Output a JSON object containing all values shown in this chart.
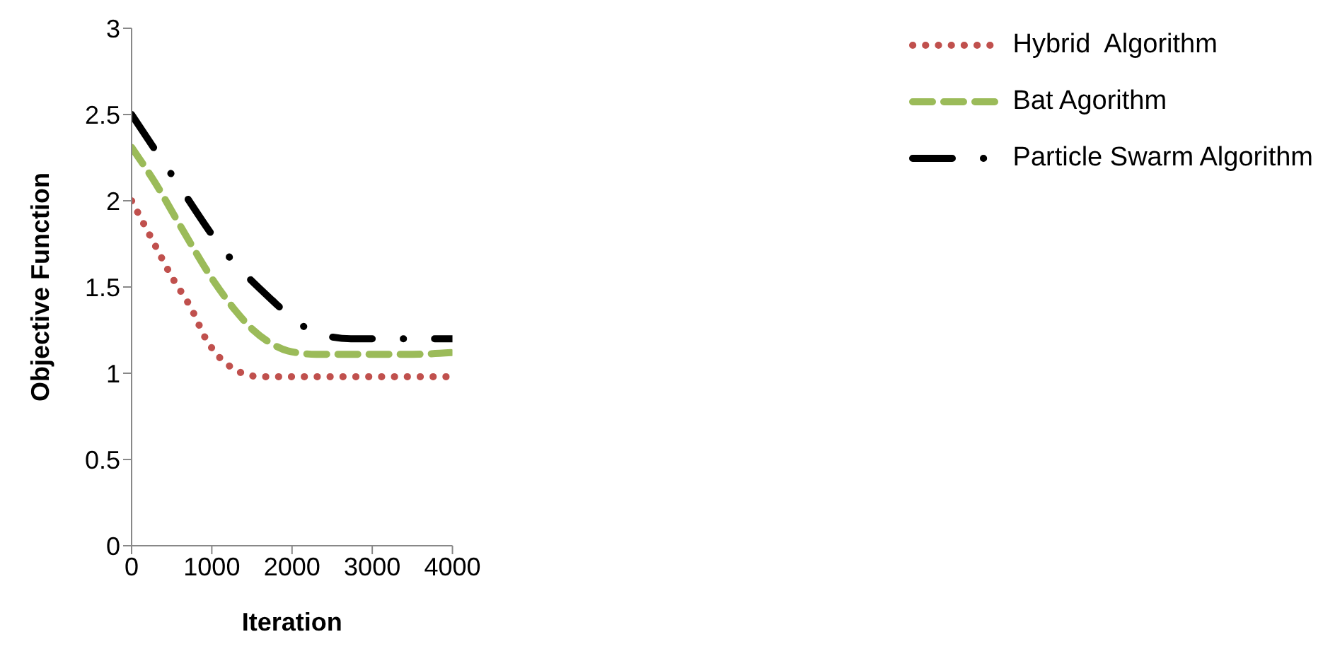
{
  "chart_data": {
    "type": "line",
    "xlabel": "Iteration",
    "ylabel": "Objective Function",
    "xlim": [
      0,
      4000
    ],
    "xticks": [
      0,
      1000,
      2000,
      3000,
      4000
    ],
    "ylim": [
      0,
      3
    ],
    "yticks": [
      0,
      0.5,
      1,
      1.5,
      2,
      2.5,
      3
    ],
    "grid": false,
    "legend": "top right",
    "marker": "none",
    "series": [
      {
        "name": "Hybrid  Algorithm",
        "color": "#c0504d",
        "line_style": "dotted",
        "x": [
          0,
          250,
          500,
          750,
          925,
          1100,
          1258,
          1450,
          1623,
          2000,
          2500,
          3000,
          3500,
          4000
        ],
        "values": [
          2.0,
          1.78,
          1.56,
          1.37,
          1.2,
          1.09,
          1.03,
          0.99,
          0.98,
          0.98,
          0.98,
          0.98,
          0.98,
          0.98
        ]
      },
      {
        "name": "Bat Agorithm",
        "color": "#9bbb59",
        "line_style": "dashed",
        "x": [
          0,
          300,
          600,
          1030,
          1300,
          1517,
          1750,
          1947,
          2300,
          2700,
          3000,
          3500,
          4000
        ],
        "values": [
          2.31,
          2.1,
          1.86,
          1.53,
          1.36,
          1.25,
          1.17,
          1.13,
          1.11,
          1.11,
          1.11,
          1.11,
          1.12
        ]
      },
      {
        "name": "Particle Swarm Algorithm",
        "color": "#000000",
        "line_style": "dashdot",
        "x": [
          0,
          560,
          1136,
          1760,
          2000,
          2223,
          2500,
          2734,
          3000,
          3500,
          4000
        ],
        "values": [
          2.5,
          2.11,
          1.72,
          1.42,
          1.32,
          1.25,
          1.21,
          1.2,
          1.2,
          1.2,
          1.2
        ]
      }
    ]
  }
}
